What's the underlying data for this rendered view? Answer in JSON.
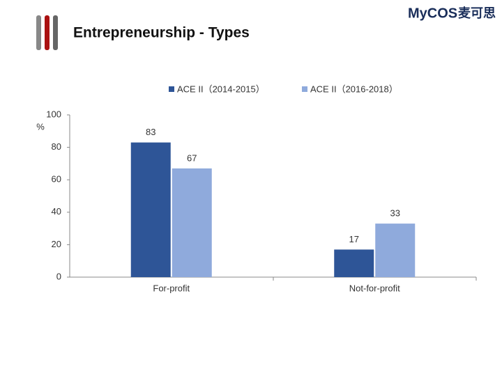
{
  "chart_data": {
    "type": "bar",
    "title": "Entrepreneurship - Types",
    "y_label": "%",
    "categories": [
      "For-profit",
      "Not-for-profit"
    ],
    "series": [
      {
        "name": "ACE II（2014-2015）",
        "color": "#2e5597",
        "values": [
          83,
          17
        ]
      },
      {
        "name": "ACE II（2016-2018）",
        "color": "#8faadc",
        "values": [
          67,
          33
        ]
      }
    ],
    "ylim": [
      0,
      100
    ],
    "yticks": [
      0,
      20,
      40,
      60,
      80,
      100
    ],
    "grid": false,
    "legend": "top"
  },
  "logo": {
    "brand": "MyCOS",
    "chinese": "麦可思"
  }
}
